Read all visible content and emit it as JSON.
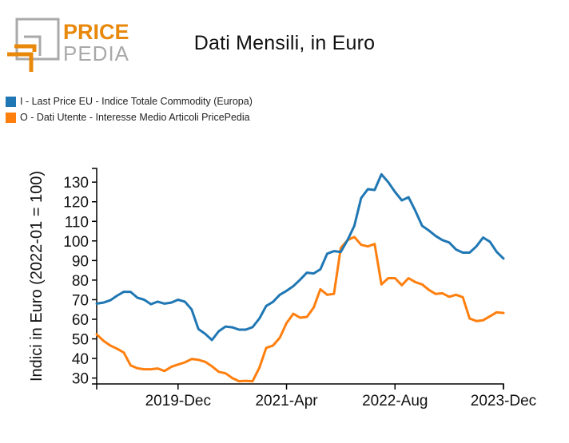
{
  "logo": {
    "word1": "PRICE",
    "word2": "PEDIA",
    "primary_color": "#e8890c",
    "secondary_color": "#a9a9a9"
  },
  "chart_data": {
    "type": "line",
    "title": "Dati Mensili, in Euro",
    "xlabel": "",
    "ylabel": "Indici in Euro (2022-01 = 100)",
    "x_start": "2018-Dec",
    "x_end": "2023-Dec",
    "x_frequency": "monthly",
    "x_tick_labels": [
      "2019-Dec",
      "2021-Apr",
      "2022-Aug",
      "2023-Dec"
    ],
    "x_tick_month_index": [
      12,
      28,
      44,
      60
    ],
    "yticks": [
      30,
      40,
      50,
      60,
      70,
      80,
      90,
      100,
      110,
      120,
      130
    ],
    "ylim": [
      27,
      137
    ],
    "grid": false,
    "legend_position": "top-left",
    "series": [
      {
        "name": "I - Last Price EU - Indice Totale Commodity (Europa)",
        "color": "#1f77b4",
        "values": [
          68,
          68.5,
          69.7,
          72,
          74,
          74,
          71,
          70,
          67.7,
          69,
          68,
          68.5,
          70,
          69,
          65,
          55,
          52.6,
          49.4,
          53.9,
          56.3,
          55.9,
          54.7,
          54.7,
          56,
          60.4,
          66.8,
          68.9,
          72.5,
          74.5,
          76.9,
          80.2,
          83.8,
          83.4,
          85.5,
          93.5,
          94.8,
          94.4,
          100.4,
          107.7,
          121.9,
          126.4,
          126,
          134,
          130,
          125,
          120.7,
          122.3,
          115.4,
          107.7,
          105.3,
          102.5,
          100.4,
          99.2,
          95.6,
          94,
          94,
          97.2,
          101.7,
          99.6,
          94.4,
          91
        ]
      },
      {
        "name": "O - Dati Utente - Interesse Medio Articoli PricePedia",
        "color": "#ff7f0e",
        "values": [
          52.3,
          49,
          46.6,
          45,
          43,
          36.5,
          35,
          34.5,
          34.5,
          34.9,
          33.6,
          35.7,
          36.9,
          38,
          39.7,
          39.3,
          38.3,
          36,
          33.2,
          32.4,
          30,
          28.4,
          28.6,
          28.4,
          35.3,
          45.4,
          46.6,
          50.6,
          58,
          62.8,
          60.8,
          61.2,
          66,
          75.3,
          72.5,
          73,
          96.4,
          100.4,
          102,
          98,
          97.2,
          98.4,
          77.8,
          81,
          81,
          77.4,
          81,
          79,
          77.8,
          75,
          72.9,
          73.3,
          71.5,
          72.5,
          71.3,
          60.4,
          59.1,
          59.5,
          61.5,
          63.6,
          63.2
        ]
      }
    ]
  }
}
